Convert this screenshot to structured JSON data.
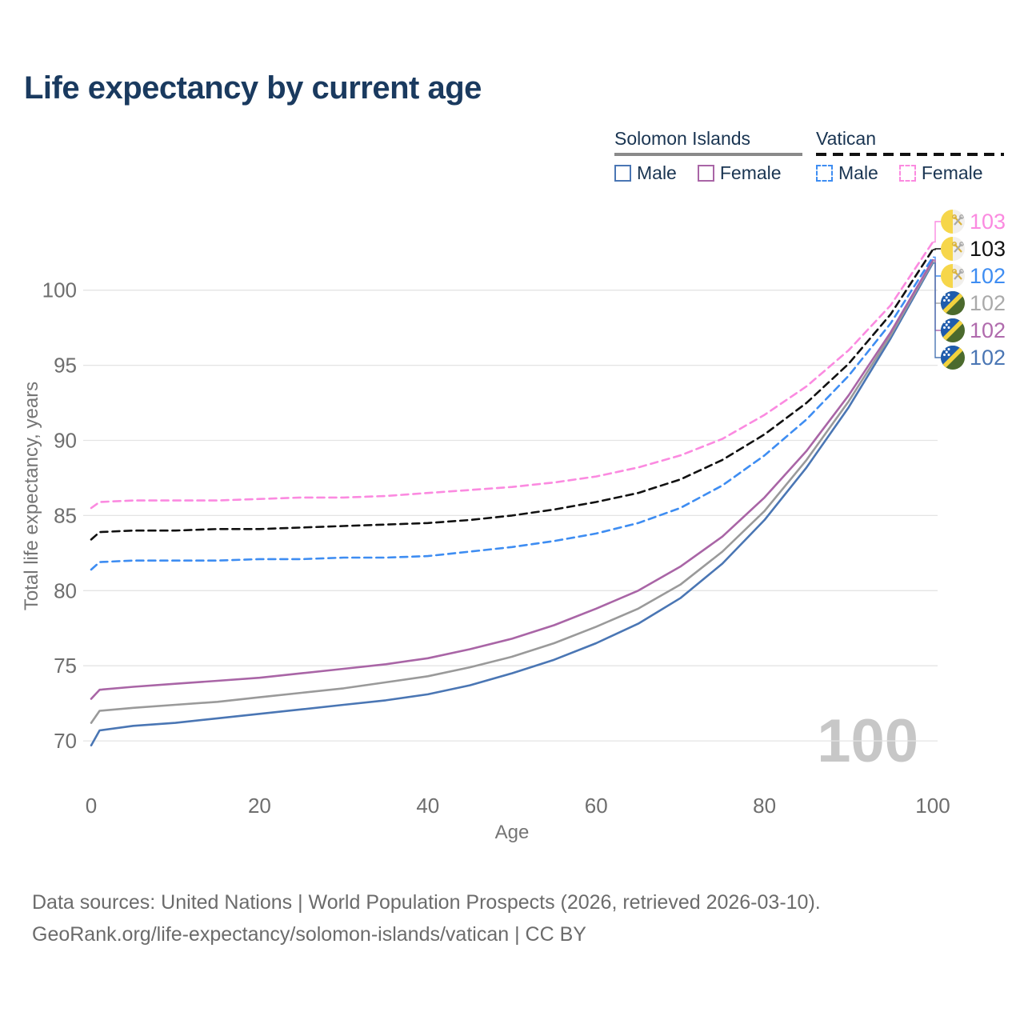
{
  "title": "Life expectancy by current age",
  "legend": {
    "groups": [
      {
        "country": "Solomon Islands",
        "line_style": "solid",
        "underline_color": "#8a8a8a",
        "items": [
          {
            "label": "Male",
            "color": "#4a76b4",
            "dashed": false
          },
          {
            "label": "Female",
            "color": "#a965a6",
            "dashed": false
          }
        ]
      },
      {
        "country": "Vatican",
        "line_style": "dashed",
        "underline_color": "#111111",
        "items": [
          {
            "label": "Male",
            "color": "#3e8df2",
            "dashed": true
          },
          {
            "label": "Female",
            "color": "#fb8ae0",
            "dashed": true
          }
        ]
      }
    ]
  },
  "chart_data": {
    "type": "line",
    "title": "Life expectancy by current age",
    "xlabel": "Age",
    "ylabel": "Total life expectancy, years",
    "xlim": [
      0,
      100
    ],
    "ylim": [
      68.5,
      104
    ],
    "xticks": [
      0,
      20,
      40,
      60,
      80,
      100
    ],
    "yticks": [
      70,
      75,
      80,
      85,
      90,
      95,
      100
    ],
    "grid": "horizontal",
    "legend_position": "top-right",
    "x": [
      0,
      1,
      5,
      10,
      15,
      20,
      25,
      30,
      35,
      40,
      45,
      50,
      55,
      60,
      65,
      70,
      75,
      80,
      85,
      90,
      95,
      100
    ],
    "series": [
      {
        "name": "si_male",
        "country": "Solomon Islands",
        "sex": "Male",
        "color": "#4a76b4",
        "dashed": false,
        "values": [
          69.7,
          70.7,
          71.0,
          71.2,
          71.5,
          71.8,
          72.1,
          72.4,
          72.7,
          73.1,
          73.7,
          74.5,
          75.4,
          76.5,
          77.8,
          79.5,
          81.8,
          84.7,
          88.2,
          92.2,
          96.8,
          101.8
        ]
      },
      {
        "name": "si_total",
        "country": "Solomon Islands",
        "sex": "Total",
        "color": "#9a9a9a",
        "dashed": false,
        "values": [
          71.2,
          72.0,
          72.2,
          72.4,
          72.6,
          72.9,
          73.2,
          73.5,
          73.9,
          74.3,
          74.9,
          75.6,
          76.5,
          77.6,
          78.8,
          80.4,
          82.6,
          85.3,
          88.7,
          92.6,
          97.0,
          101.9
        ]
      },
      {
        "name": "si_female",
        "country": "Solomon Islands",
        "sex": "Female",
        "color": "#a965a6",
        "dashed": false,
        "values": [
          72.8,
          73.4,
          73.6,
          73.8,
          74.0,
          74.2,
          74.5,
          74.8,
          75.1,
          75.5,
          76.1,
          76.8,
          77.7,
          78.8,
          80.0,
          81.6,
          83.6,
          86.2,
          89.3,
          93.0,
          97.2,
          102.0
        ]
      },
      {
        "name": "va_male",
        "country": "Vatican",
        "sex": "Male",
        "color": "#3e8df2",
        "dashed": true,
        "values": [
          81.4,
          81.9,
          82.0,
          82.0,
          82.0,
          82.1,
          82.1,
          82.2,
          82.2,
          82.3,
          82.6,
          82.9,
          83.3,
          83.8,
          84.5,
          85.5,
          87.0,
          89.0,
          91.4,
          94.3,
          97.8,
          102.2
        ]
      },
      {
        "name": "va_total",
        "country": "Vatican",
        "sex": "Total",
        "color": "#111111",
        "dashed": true,
        "values": [
          83.4,
          83.9,
          84.0,
          84.0,
          84.1,
          84.1,
          84.2,
          84.3,
          84.4,
          84.5,
          84.7,
          85.0,
          85.4,
          85.9,
          86.5,
          87.4,
          88.7,
          90.4,
          92.5,
          95.1,
          98.4,
          102.7
        ]
      },
      {
        "name": "va_female",
        "country": "Vatican",
        "sex": "Female",
        "color": "#fb8ae0",
        "dashed": true,
        "values": [
          85.5,
          85.9,
          86.0,
          86.0,
          86.0,
          86.1,
          86.2,
          86.2,
          86.3,
          86.5,
          86.7,
          86.9,
          87.2,
          87.6,
          88.2,
          89.0,
          90.1,
          91.7,
          93.6,
          96.0,
          99.0,
          103.2
        ]
      }
    ]
  },
  "end_labels": [
    {
      "series": "va_female",
      "value": "103",
      "color": "#fb8ae0",
      "flag": "vatican"
    },
    {
      "series": "va_total",
      "value": "103",
      "color": "#111111",
      "flag": "vatican"
    },
    {
      "series": "va_male",
      "value": "102",
      "color": "#3e8df2",
      "flag": "vatican"
    },
    {
      "series": "si_total",
      "value": "102",
      "color": "#aaaaaa",
      "flag": "solomon-islands"
    },
    {
      "series": "si_female",
      "value": "102",
      "color": "#b06bad",
      "flag": "solomon-islands"
    },
    {
      "series": "si_male",
      "value": "102",
      "color": "#4a76b4",
      "flag": "solomon-islands"
    }
  ],
  "watermark": "100",
  "footer": {
    "line1": "Data sources: United Nations | World Population Prospects (2026, retrieved 2026-03-10).",
    "line2": "GeoRank.org/life-expectancy/solomon-islands/vatican | CC BY"
  }
}
